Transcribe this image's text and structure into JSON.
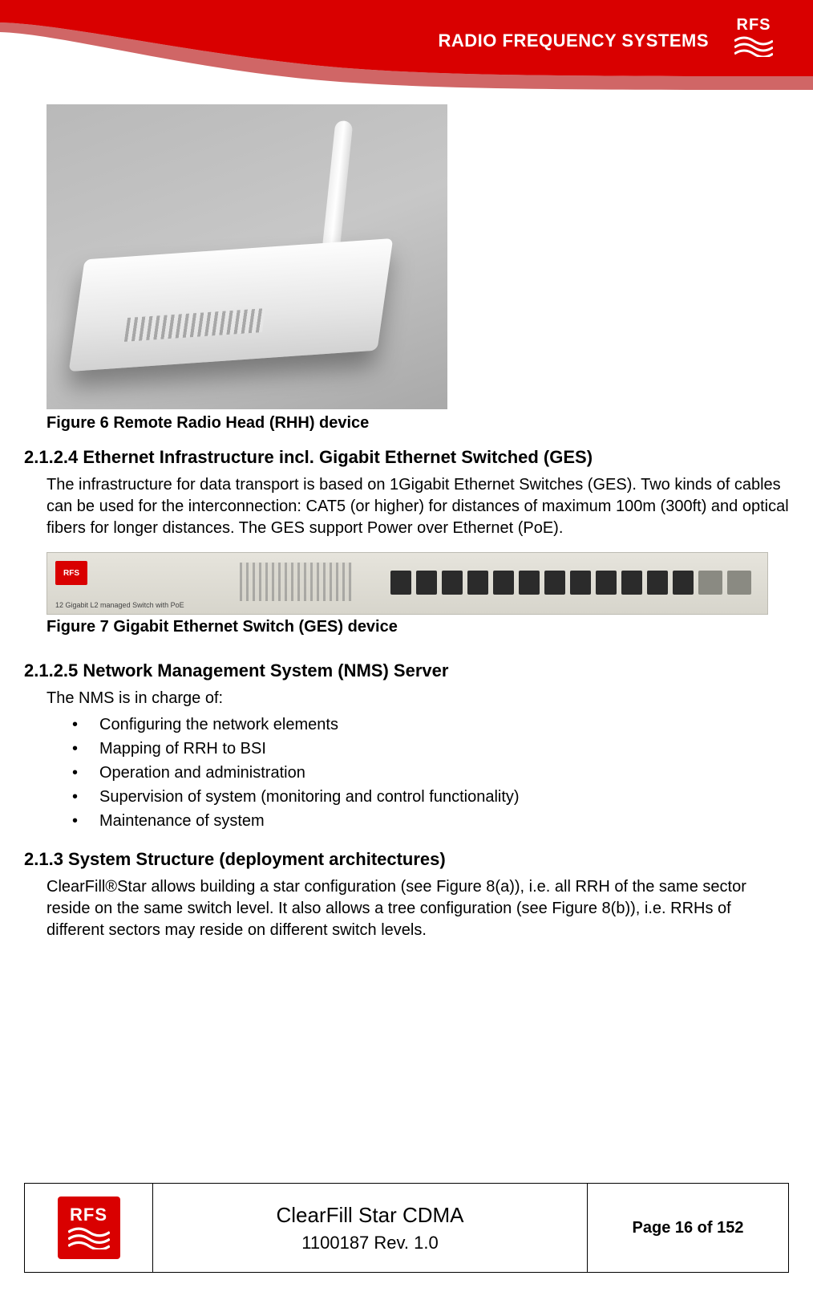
{
  "brand": {
    "header_text": "RADIO FREQUENCY SYSTEMS",
    "logo_text": "RFS",
    "red": "#d90000",
    "white": "#ffffff"
  },
  "figure6": {
    "caption": "Figure 6 Remote Radio Head (RHH) device",
    "bg_gradient_from": "#b9b9b9",
    "bg_gradient_to": "#a9a9a9"
  },
  "section_2124": {
    "heading": "2.1.2.4  Ethernet Infrastructure incl. Gigabit Ethernet Switched (GES)",
    "body": "The infrastructure for data transport is based on 1Gigabit Ethernet Switches (GES). Two kinds of cables can be used for the interconnection: CAT5 (or higher) for distances of maximum 100m (300ft) and optical fibers for longer distances. The GES support Power over Ethernet (PoE)."
  },
  "figure7": {
    "caption": "Figure 7 Gigabit Ethernet Switch (GES) device",
    "switch_label": "12 Gigabit L2 managed Switch with PoE",
    "port_count_rj45": 12,
    "port_count_sfp": 2
  },
  "section_2125": {
    "heading": "2.1.2.5  Network Management System (NMS) Server",
    "intro": "The NMS is in charge of:",
    "bullets": [
      "Configuring the network elements",
      "Mapping of RRH to BSI",
      "Operation and administration",
      "Supervision of system (monitoring and control functionality)",
      "Maintenance of system"
    ]
  },
  "section_213": {
    "heading": "2.1.3   System Structure (deployment architectures)",
    "body": "ClearFill®Star allows building a star configuration (see Figure 8(a)), i.e. all RRH of the same sector reside on the same switch level. It also allows a tree configuration (see Figure 8(b)), i.e. RRHs of different sectors may reside on different switch levels."
  },
  "footer": {
    "title_main": "ClearFill Star CDMA",
    "title_sub": "1100187 Rev. 1.0",
    "page": "Page 16 of 152"
  },
  "typography": {
    "body_fontsize": 20,
    "heading_fontsize": 22,
    "caption_fontsize": 20,
    "footer_title_fontsize": 26
  }
}
